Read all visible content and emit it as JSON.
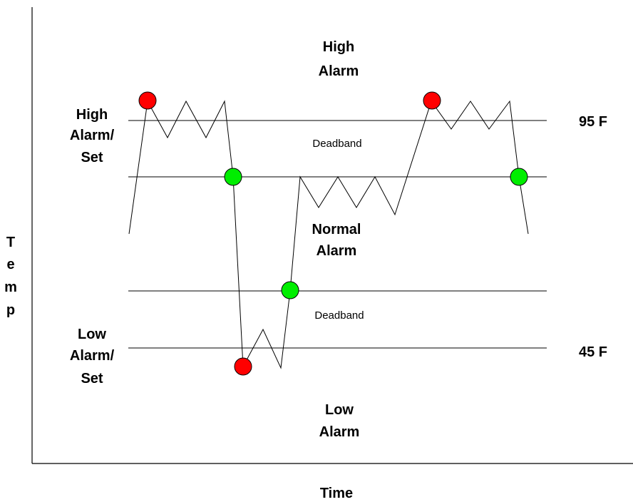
{
  "axes": {
    "x_label": "Time",
    "y_label_letters": [
      "T",
      "e",
      "m",
      "p"
    ]
  },
  "regions": {
    "high_alarm": [
      "High",
      "Alarm"
    ],
    "normal_alarm": [
      "Normal",
      "Alarm"
    ],
    "low_alarm": [
      "Low",
      "Alarm"
    ],
    "upper_deadband": "Deadband",
    "lower_deadband": "Deadband"
  },
  "set_labels": {
    "high": [
      "High",
      "Alarm/",
      "Set"
    ],
    "low": [
      "Low",
      "Alarm/",
      "Set"
    ]
  },
  "setpoints": {
    "high": "95 F",
    "low": "45 F"
  },
  "colors": {
    "alarm_marker": "#ff0000",
    "normal_marker": "#00ee00",
    "line": "#000000"
  }
}
